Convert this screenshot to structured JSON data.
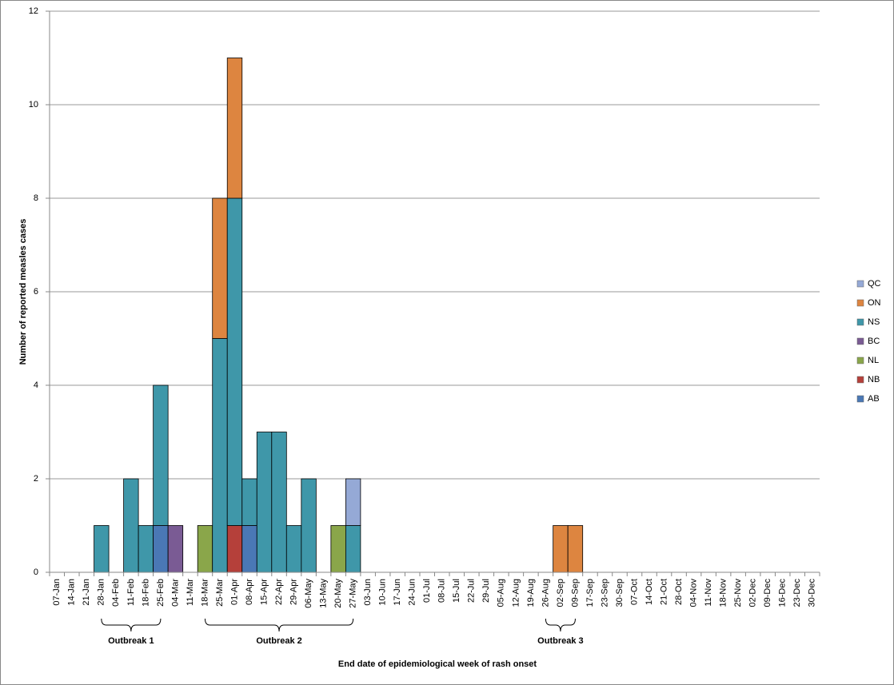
{
  "chart_data": {
    "type": "bar",
    "stacked": true,
    "y_label": "Number of reported measles cases",
    "x_label": "End date of epidemiological  week of rash onset",
    "categories": [
      "07-Jan",
      "14-Jan",
      "21-Jan",
      "28-Jan",
      "04-Feb",
      "11-Feb",
      "18-Feb",
      "25-Feb",
      "04-Mar",
      "11-Mar",
      "18-Mar",
      "25-Mar",
      "01-Apr",
      "08-Apr",
      "15-Apr",
      "22-Apr",
      "29-Apr",
      "06-May",
      "13-May",
      "20-May",
      "27-May",
      "03-Jun",
      "10-Jun",
      "17-Jun",
      "24-Jun",
      "01-Jul",
      "08-Jul",
      "15-Jul",
      "22-Jul",
      "29-Jul",
      "05-Aug",
      "12-Aug",
      "19-Aug",
      "26-Aug",
      "02-Sep",
      "09-Sep",
      "17-Sep",
      "23-Sep",
      "30-Sep",
      "07-Oct",
      "14-Oct",
      "21-Oct",
      "28-Oct",
      "04-Nov",
      "11-Nov",
      "18-Nov",
      "25-Nov",
      "02-Dec",
      "09-Dec",
      "16-Dec",
      "23-Dec",
      "30-Dec"
    ],
    "series": [
      {
        "name": "AB",
        "color": "#4a78b5",
        "values": [
          0,
          0,
          0,
          0,
          0,
          0,
          0,
          1,
          0,
          0,
          0,
          0,
          0,
          1,
          0,
          0,
          0,
          0,
          0,
          0,
          0,
          0,
          0,
          0,
          0,
          0,
          0,
          0,
          0,
          0,
          0,
          0,
          0,
          0,
          0,
          0,
          0,
          0,
          0,
          0,
          0,
          0,
          0,
          0,
          0,
          0,
          0,
          0,
          0,
          0,
          0,
          0
        ]
      },
      {
        "name": "NB",
        "color": "#b5403a",
        "values": [
          0,
          0,
          0,
          0,
          0,
          0,
          0,
          0,
          0,
          0,
          0,
          0,
          1,
          0,
          0,
          0,
          0,
          0,
          0,
          0,
          0,
          0,
          0,
          0,
          0,
          0,
          0,
          0,
          0,
          0,
          0,
          0,
          0,
          0,
          0,
          0,
          0,
          0,
          0,
          0,
          0,
          0,
          0,
          0,
          0,
          0,
          0,
          0,
          0,
          0,
          0,
          0
        ]
      },
      {
        "name": "NL",
        "color": "#8aa64a",
        "values": [
          0,
          0,
          0,
          0,
          0,
          0,
          0,
          0,
          0,
          0,
          1,
          0,
          0,
          0,
          0,
          0,
          0,
          0,
          0,
          1,
          0,
          0,
          0,
          0,
          0,
          0,
          0,
          0,
          0,
          0,
          0,
          0,
          0,
          0,
          0,
          0,
          0,
          0,
          0,
          0,
          0,
          0,
          0,
          0,
          0,
          0,
          0,
          0,
          0,
          0,
          0,
          0
        ]
      },
      {
        "name": "BC",
        "color": "#7a5b94",
        "values": [
          0,
          0,
          0,
          0,
          0,
          0,
          0,
          0,
          1,
          0,
          0,
          0,
          0,
          0,
          0,
          0,
          0,
          0,
          0,
          0,
          0,
          0,
          0,
          0,
          0,
          0,
          0,
          0,
          0,
          0,
          0,
          0,
          0,
          0,
          0,
          0,
          0,
          0,
          0,
          0,
          0,
          0,
          0,
          0,
          0,
          0,
          0,
          0,
          0,
          0,
          0,
          0
        ]
      },
      {
        "name": "NS",
        "color": "#3f97a9",
        "values": [
          0,
          0,
          0,
          1,
          0,
          2,
          1,
          3,
          0,
          0,
          0,
          5,
          7,
          1,
          3,
          3,
          1,
          2,
          0,
          0,
          1,
          0,
          0,
          0,
          0,
          0,
          0,
          0,
          0,
          0,
          0,
          0,
          0,
          0,
          0,
          0,
          0,
          0,
          0,
          0,
          0,
          0,
          0,
          0,
          0,
          0,
          0,
          0,
          0,
          0,
          0,
          0
        ]
      },
      {
        "name": "ON",
        "color": "#dd8540",
        "values": [
          0,
          0,
          0,
          0,
          0,
          0,
          0,
          0,
          0,
          0,
          0,
          3,
          3,
          0,
          0,
          0,
          0,
          0,
          0,
          0,
          0,
          0,
          0,
          0,
          0,
          0,
          0,
          0,
          0,
          0,
          0,
          0,
          0,
          0,
          1,
          1,
          0,
          0,
          0,
          0,
          0,
          0,
          0,
          0,
          0,
          0,
          0,
          0,
          0,
          0,
          0,
          0
        ]
      },
      {
        "name": "QC",
        "color": "#95a9d6",
        "values": [
          0,
          0,
          0,
          0,
          0,
          0,
          0,
          0,
          0,
          0,
          0,
          0,
          0,
          0,
          0,
          0,
          0,
          0,
          0,
          0,
          1,
          0,
          0,
          0,
          0,
          0,
          0,
          0,
          0,
          0,
          0,
          0,
          0,
          0,
          0,
          0,
          0,
          0,
          0,
          0,
          0,
          0,
          0,
          0,
          0,
          0,
          0,
          0,
          0,
          0,
          0,
          0
        ]
      }
    ],
    "annotations": [
      "Outbreak 1",
      "Outbreak 2",
      "Outbreak 3"
    ],
    "ylim": [
      0,
      12
    ],
    "yticks": [
      0,
      2,
      4,
      6,
      8,
      10,
      12
    ],
    "grid": true,
    "legend": "right"
  }
}
